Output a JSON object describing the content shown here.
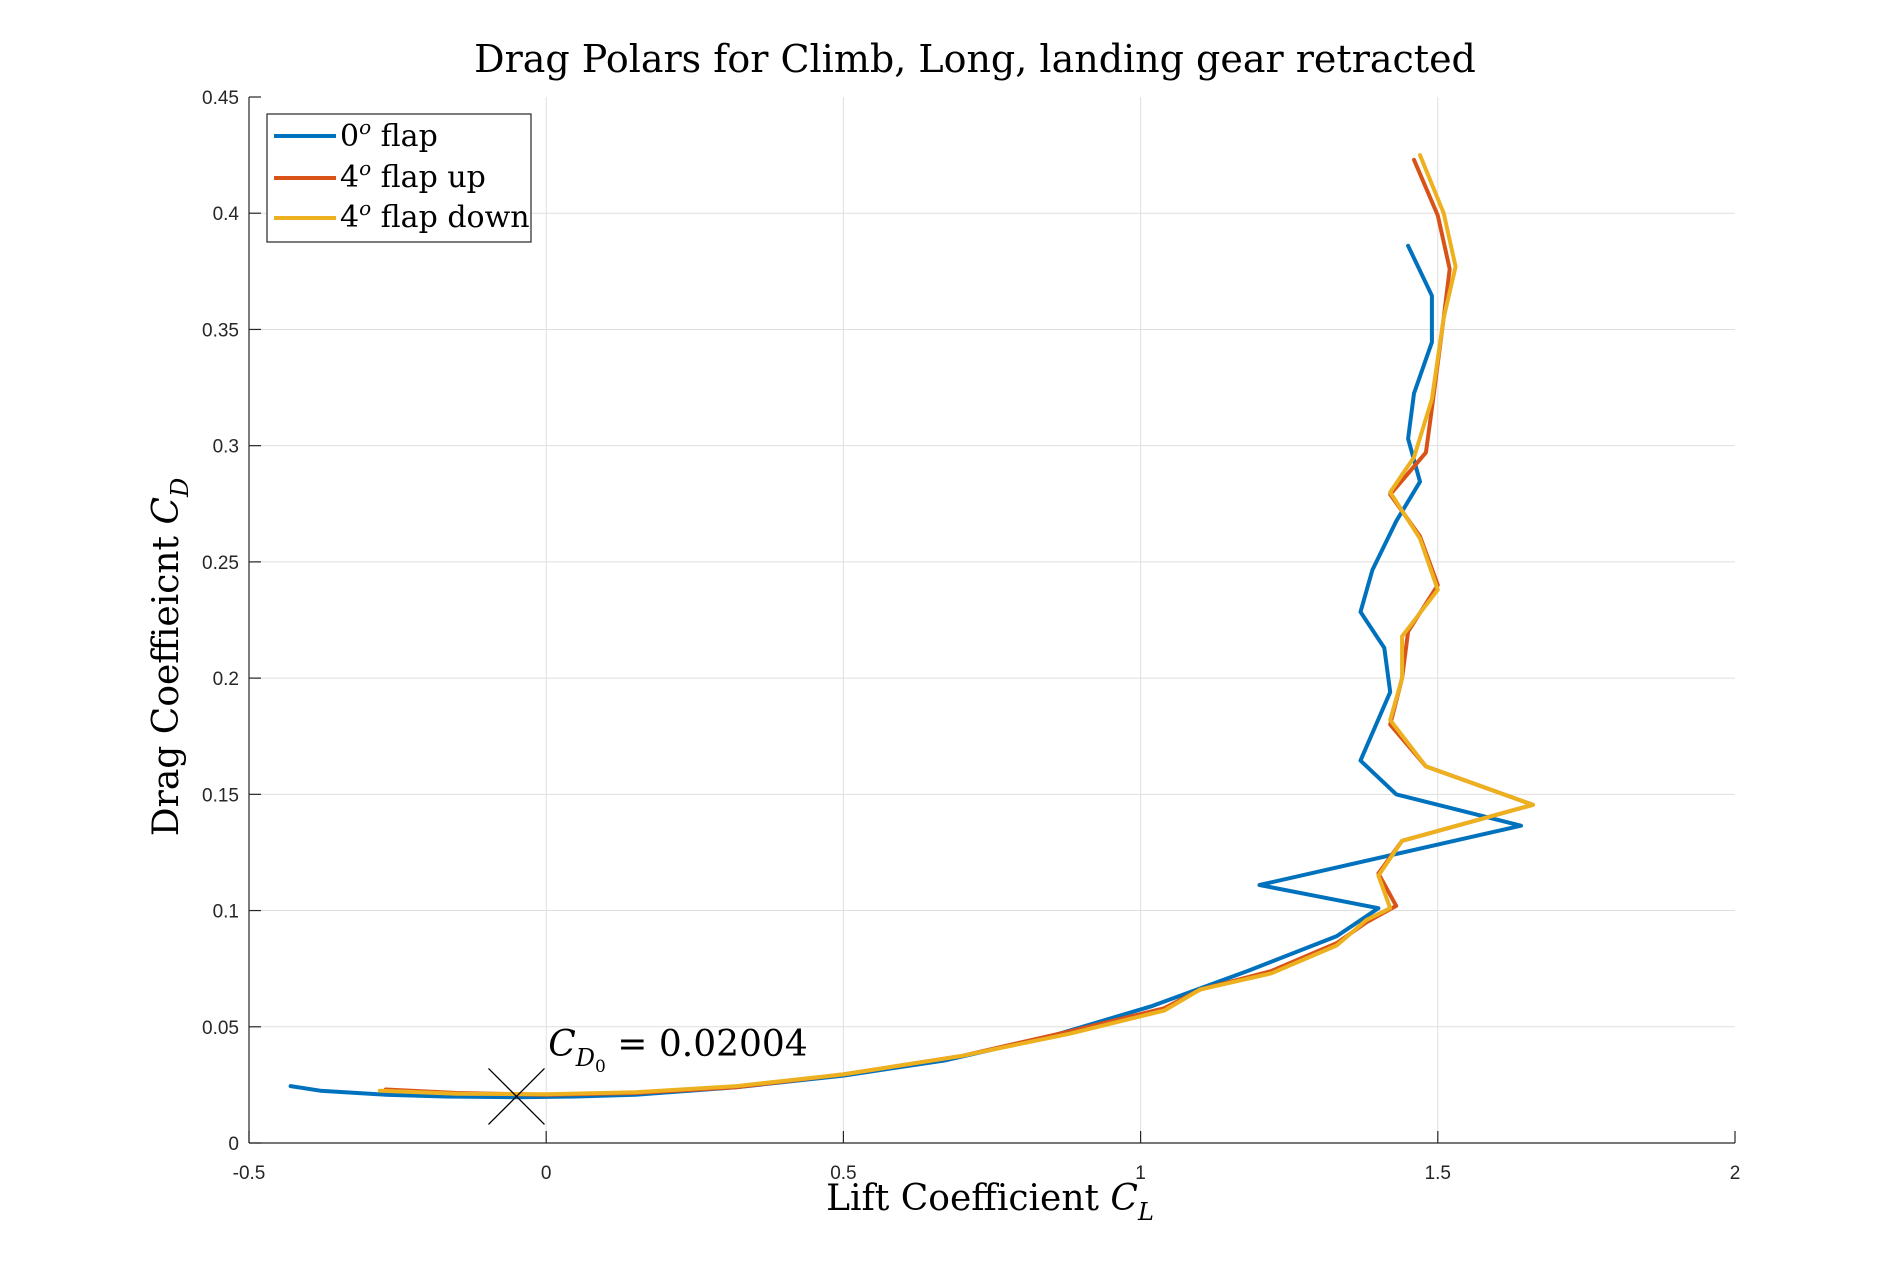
{
  "chart_data": {
    "type": "line",
    "title": "Drag Polars for Climb, Long, landing gear retracted",
    "xlabel": {
      "main": "Lift Coefficient ",
      "var": "C",
      "sub": "L"
    },
    "ylabel": {
      "main": "Drag Coeffieicnt ",
      "var": "C",
      "sub": "D"
    },
    "xlim": [
      -0.5,
      2
    ],
    "ylim": [
      0,
      0.45
    ],
    "xticks": [
      -0.5,
      0,
      0.5,
      1,
      1.5,
      2
    ],
    "xtick_labels": [
      "-0.5",
      "0",
      "0.5",
      "1",
      "1.5",
      "2"
    ],
    "yticks": [
      0,
      0.05,
      0.1,
      0.15,
      0.2,
      0.25,
      0.3,
      0.35,
      0.4,
      0.45
    ],
    "ytick_labels": [
      "0",
      "0.05",
      "0.1",
      "0.15",
      "0.2",
      "0.25",
      "0.3",
      "0.35",
      "0.4",
      "0.45"
    ],
    "grid": true,
    "legend_position": "top-left",
    "series": [
      {
        "name": "0° flap",
        "legend": {
          "num": "0",
          "sup": "o",
          "text": " flap"
        },
        "color": "#0072BD",
        "points": [
          [
            -0.43,
            0.0245
          ],
          [
            -0.38,
            0.0225
          ],
          [
            -0.27,
            0.0208
          ],
          [
            -0.17,
            0.02
          ],
          [
            -0.05,
            0.0197
          ],
          [
            0.05,
            0.02
          ],
          [
            0.15,
            0.0208
          ],
          [
            0.32,
            0.024
          ],
          [
            0.5,
            0.029
          ],
          [
            0.67,
            0.0355
          ],
          [
            0.85,
            0.046
          ],
          [
            1.02,
            0.059
          ],
          [
            1.18,
            0.074
          ],
          [
            1.33,
            0.089
          ],
          [
            1.4,
            0.101
          ],
          [
            1.2,
            0.111
          ],
          [
            1.64,
            0.1365
          ],
          [
            1.43,
            0.15
          ],
          [
            1.37,
            0.1645
          ],
          [
            1.42,
            0.194
          ],
          [
            1.41,
            0.213
          ],
          [
            1.37,
            0.2285
          ],
          [
            1.39,
            0.2465
          ],
          [
            1.43,
            0.2675
          ],
          [
            1.47,
            0.2845
          ],
          [
            1.45,
            0.303
          ],
          [
            1.46,
            0.3225
          ],
          [
            1.49,
            0.3445
          ],
          [
            1.49,
            0.3645
          ],
          [
            1.45,
            0.386
          ]
        ]
      },
      {
        "name": "4° flap up",
        "legend": {
          "num": "4",
          "sup": "o",
          "text": " flap up"
        },
        "color": "#D95319",
        "points": [
          [
            -0.27,
            0.023
          ],
          [
            -0.15,
            0.0215
          ],
          [
            0.0,
            0.0208
          ],
          [
            0.15,
            0.0215
          ],
          [
            0.32,
            0.024
          ],
          [
            0.5,
            0.0295
          ],
          [
            0.7,
            0.0375
          ],
          [
            0.88,
            0.048
          ],
          [
            1.04,
            0.058
          ],
          [
            1.1,
            0.066
          ],
          [
            1.22,
            0.074
          ],
          [
            1.33,
            0.086
          ],
          [
            1.38,
            0.095
          ],
          [
            1.43,
            0.102
          ],
          [
            1.4,
            0.116
          ],
          [
            1.44,
            0.13
          ],
          [
            1.66,
            0.1455
          ],
          [
            1.48,
            0.162
          ],
          [
            1.42,
            0.18
          ],
          [
            1.44,
            0.2
          ],
          [
            1.45,
            0.22
          ],
          [
            1.5,
            0.24
          ],
          [
            1.47,
            0.261
          ],
          [
            1.42,
            0.279
          ],
          [
            1.48,
            0.297
          ],
          [
            1.49,
            0.316
          ],
          [
            1.51,
            0.355
          ],
          [
            1.52,
            0.376
          ],
          [
            1.5,
            0.399
          ],
          [
            1.46,
            0.423
          ]
        ]
      },
      {
        "name": "4° flap down",
        "legend": {
          "num": "4",
          "sup": "o",
          "text": " flap down"
        },
        "color": "#EDB120",
        "points": [
          [
            -0.28,
            0.0225
          ],
          [
            -0.15,
            0.0212
          ],
          [
            0.0,
            0.021
          ],
          [
            0.15,
            0.0218
          ],
          [
            0.32,
            0.0245
          ],
          [
            0.5,
            0.0295
          ],
          [
            0.7,
            0.0375
          ],
          [
            0.88,
            0.047
          ],
          [
            1.04,
            0.057
          ],
          [
            1.1,
            0.066
          ],
          [
            1.22,
            0.073
          ],
          [
            1.33,
            0.085
          ],
          [
            1.38,
            0.096
          ],
          [
            1.42,
            0.101
          ],
          [
            1.4,
            0.115
          ],
          [
            1.44,
            0.13
          ],
          [
            1.66,
            0.1455
          ],
          [
            1.48,
            0.162
          ],
          [
            1.42,
            0.182
          ],
          [
            1.44,
            0.2
          ],
          [
            1.44,
            0.218
          ],
          [
            1.5,
            0.238
          ],
          [
            1.47,
            0.26
          ],
          [
            1.42,
            0.28
          ],
          [
            1.46,
            0.295
          ],
          [
            1.49,
            0.32
          ],
          [
            1.51,
            0.355
          ],
          [
            1.53,
            0.377
          ],
          [
            1.51,
            0.4
          ],
          [
            1.47,
            0.425
          ]
        ]
      }
    ],
    "annotation": {
      "var": "C",
      "sub": "D",
      "subsub": "0",
      "text": " = 0.02004",
      "value": 0.02004,
      "marker": "x",
      "marker_x": -0.05,
      "marker_y": 0.02004
    }
  }
}
